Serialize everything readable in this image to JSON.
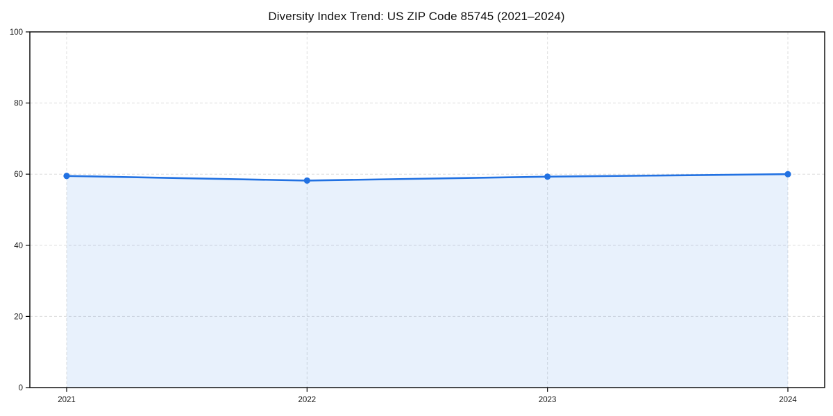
{
  "chart_data": {
    "type": "area",
    "title": "Diversity Index Trend: US ZIP Code 85745 (2021–2024)",
    "x": [
      2021,
      2022,
      2023,
      2024
    ],
    "series": [
      {
        "name": "Diversity Index",
        "values": [
          59.5,
          58.2,
          59.3,
          60.0
        ]
      }
    ],
    "xlabel": "",
    "ylabel": "",
    "ylim": [
      0,
      100
    ],
    "yticks": [
      0,
      20,
      40,
      60,
      80,
      100
    ],
    "xticklabels": [
      "2021",
      "2022",
      "2023",
      "2024"
    ],
    "grid": true,
    "grid_style": "dashed",
    "legend": "none",
    "line_color": "#2171e2",
    "marker_color": "#2171e2",
    "fill_color": "#2171e2",
    "fill_opacity": 0.1,
    "grid_color": "#dcdcdc",
    "spine_color": "#000000",
    "background_color": "#ffffff"
  }
}
